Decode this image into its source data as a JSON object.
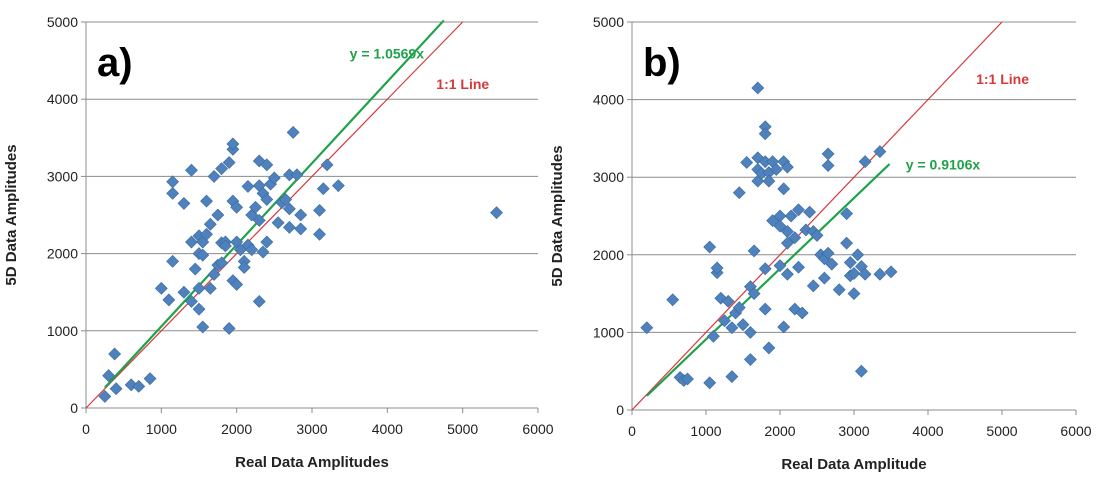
{
  "colors": {
    "point": "#4F81BD",
    "point_edge": "#3A6A9F",
    "fit_line": "#1FA24A",
    "identity_line": "#D6393B",
    "grid": "#8C8C8C",
    "axis": "#8C8C8C"
  },
  "chart_data": [
    {
      "type": "scatter",
      "panel_label": "a)",
      "title": "",
      "xlabel": "Real Data Amplitudes",
      "ylabel": "5D Data Amplitudes",
      "xlim": [
        0,
        6000
      ],
      "ylim": [
        0,
        5000
      ],
      "xticks": [
        "0",
        "1000",
        "2000",
        "3000",
        "4000",
        "5000",
        "6000"
      ],
      "yticks": [
        "0",
        "1000",
        "2000",
        "3000",
        "4000",
        "5000"
      ],
      "fit_label": "y = 1.0569x",
      "fit_slope": 1.0569,
      "fit_range": [
        250,
        4750
      ],
      "identity_label": "1:1 Line",
      "identity_range": [
        0,
        5000
      ],
      "fit_label_at": [
        3500,
        4530
      ],
      "identity_label_at": [
        4650,
        4130
      ],
      "points": [
        [
          250,
          150
        ],
        [
          300,
          420
        ],
        [
          380,
          700
        ],
        [
          400,
          250
        ],
        [
          600,
          300
        ],
        [
          700,
          280
        ],
        [
          850,
          380
        ],
        [
          1000,
          1550
        ],
        [
          1100,
          1400
        ],
        [
          1150,
          1900
        ],
        [
          1150,
          2930
        ],
        [
          1150,
          2780
        ],
        [
          1300,
          2650
        ],
        [
          1300,
          1500
        ],
        [
          1400,
          3080
        ],
        [
          1400,
          2150
        ],
        [
          1400,
          1380
        ],
        [
          1450,
          1800
        ],
        [
          1500,
          1280
        ],
        [
          1500,
          1550
        ],
        [
          1500,
          2000
        ],
        [
          1500,
          2230
        ],
        [
          1550,
          1050
        ],
        [
          1550,
          1980
        ],
        [
          1550,
          2150
        ],
        [
          1600,
          2680
        ],
        [
          1600,
          2250
        ],
        [
          1650,
          1550
        ],
        [
          1650,
          2380
        ],
        [
          1700,
          1730
        ],
        [
          1700,
          3000
        ],
        [
          1750,
          2500
        ],
        [
          1750,
          1850
        ],
        [
          1800,
          3100
        ],
        [
          1800,
          1880
        ],
        [
          1800,
          2140
        ],
        [
          1850,
          2150
        ],
        [
          1850,
          2100
        ],
        [
          1900,
          3180
        ],
        [
          1900,
          1030
        ],
        [
          1950,
          3350
        ],
        [
          1950,
          3420
        ],
        [
          1950,
          2680
        ],
        [
          1950,
          1650
        ],
        [
          2000,
          2600
        ],
        [
          2000,
          2150
        ],
        [
          2000,
          1600
        ],
        [
          2050,
          2050
        ],
        [
          2100,
          1900
        ],
        [
          2100,
          1820
        ],
        [
          2150,
          2870
        ],
        [
          2150,
          2110
        ],
        [
          2200,
          2500
        ],
        [
          2200,
          2050
        ],
        [
          2250,
          2600
        ],
        [
          2300,
          3200
        ],
        [
          2300,
          1380
        ],
        [
          2300,
          2430
        ],
        [
          2300,
          2880
        ],
        [
          2350,
          2780
        ],
        [
          2350,
          2020
        ],
        [
          2400,
          3150
        ],
        [
          2400,
          2700
        ],
        [
          2400,
          2150
        ],
        [
          2450,
          2900
        ],
        [
          2500,
          2980
        ],
        [
          2550,
          2400
        ],
        [
          2600,
          2660
        ],
        [
          2650,
          2700
        ],
        [
          2700,
          2580
        ],
        [
          2700,
          2340
        ],
        [
          2700,
          3020
        ],
        [
          2750,
          3570
        ],
        [
          2800,
          3020
        ],
        [
          2850,
          2320
        ],
        [
          2850,
          2500
        ],
        [
          3100,
          2560
        ],
        [
          3100,
          2250
        ],
        [
          3150,
          2840
        ],
        [
          3200,
          3150
        ],
        [
          3350,
          2880
        ],
        [
          5450,
          2530
        ]
      ]
    },
    {
      "type": "scatter",
      "panel_label": "b)",
      "title": "",
      "xlabel": "Real Data Amplitude",
      "ylabel": "5D Data Amplitudes",
      "xlim": [
        0,
        6000
      ],
      "ylim": [
        0,
        5000
      ],
      "xticks": [
        "0",
        "1000",
        "2000",
        "3000",
        "4000",
        "5000",
        "6000"
      ],
      "yticks": [
        "0",
        "1000",
        "2000",
        "3000",
        "4000",
        "5000"
      ],
      "fit_label": "y = 0.9106x",
      "fit_slope": 0.9106,
      "fit_range": [
        200,
        3480
      ],
      "identity_label": "1:1 Line",
      "identity_range": [
        0,
        5000
      ],
      "fit_label_at": [
        3700,
        3100
      ],
      "identity_label_at": [
        4650,
        4200
      ],
      "points": [
        [
          200,
          1060
        ],
        [
          550,
          1420
        ],
        [
          650,
          420
        ],
        [
          700,
          380
        ],
        [
          750,
          400
        ],
        [
          1050,
          2100
        ],
        [
          1050,
          350
        ],
        [
          1100,
          950
        ],
        [
          1150,
          1770
        ],
        [
          1150,
          1830
        ],
        [
          1200,
          1440
        ],
        [
          1250,
          1150
        ],
        [
          1300,
          1400
        ],
        [
          1350,
          1060
        ],
        [
          1350,
          430
        ],
        [
          1400,
          1250
        ],
        [
          1450,
          2800
        ],
        [
          1450,
          1320
        ],
        [
          1500,
          1100
        ],
        [
          1550,
          3190
        ],
        [
          1600,
          650
        ],
        [
          1600,
          1590
        ],
        [
          1600,
          1000
        ],
        [
          1650,
          1500
        ],
        [
          1650,
          2050
        ],
        [
          1700,
          4150
        ],
        [
          1700,
          3250
        ],
        [
          1700,
          3100
        ],
        [
          1700,
          2950
        ],
        [
          1750,
          3050
        ],
        [
          1800,
          3650
        ],
        [
          1800,
          3560
        ],
        [
          1800,
          3200
        ],
        [
          1800,
          1820
        ],
        [
          1800,
          1300
        ],
        [
          1850,
          3060
        ],
        [
          1850,
          2950
        ],
        [
          1850,
          800
        ],
        [
          1900,
          3200
        ],
        [
          1900,
          2440
        ],
        [
          1950,
          3100
        ],
        [
          2000,
          2500
        ],
        [
          2000,
          2370
        ],
        [
          2000,
          1860
        ],
        [
          2050,
          3200
        ],
        [
          2050,
          2850
        ],
        [
          2050,
          1070
        ],
        [
          2100,
          3130
        ],
        [
          2100,
          2300
        ],
        [
          2100,
          2150
        ],
        [
          2100,
          1750
        ],
        [
          2150,
          2500
        ],
        [
          2200,
          2220
        ],
        [
          2200,
          1300
        ],
        [
          2250,
          2580
        ],
        [
          2250,
          1840
        ],
        [
          2300,
          1250
        ],
        [
          2350,
          2320
        ],
        [
          2400,
          2550
        ],
        [
          2450,
          1600
        ],
        [
          2450,
          2300
        ],
        [
          2500,
          2250
        ],
        [
          2550,
          2000
        ],
        [
          2600,
          1700
        ],
        [
          2600,
          1950
        ],
        [
          2650,
          3300
        ],
        [
          2650,
          3150
        ],
        [
          2650,
          2020
        ],
        [
          2700,
          1880
        ],
        [
          2800,
          1550
        ],
        [
          2900,
          2530
        ],
        [
          2900,
          2150
        ],
        [
          2950,
          1900
        ],
        [
          2950,
          1730
        ],
        [
          3000,
          1760
        ],
        [
          3000,
          1500
        ],
        [
          3050,
          2000
        ],
        [
          3100,
          1850
        ],
        [
          3100,
          500
        ],
        [
          3150,
          3200
        ],
        [
          3150,
          1750
        ],
        [
          3350,
          3330
        ],
        [
          3350,
          1750
        ],
        [
          3500,
          1780
        ]
      ]
    }
  ]
}
